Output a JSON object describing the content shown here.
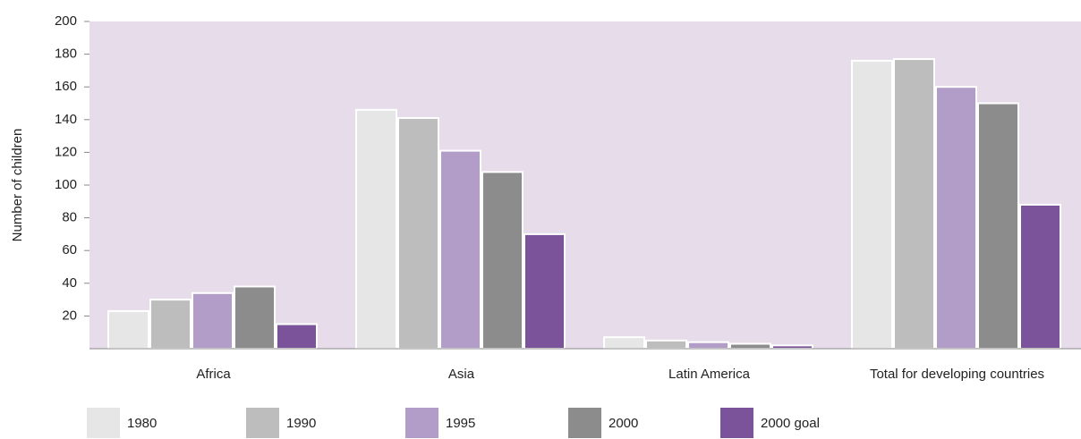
{
  "chart_data": {
    "type": "bar",
    "y_label": "Number of children",
    "categories": [
      "Africa",
      "Asia",
      "Latin America",
      "Total for developing countries"
    ],
    "series": [
      {
        "name": "1980",
        "color": "#e6e6e6",
        "values": [
          23,
          146,
          7,
          176
        ]
      },
      {
        "name": "1990",
        "color": "#bdbdbd",
        "values": [
          30,
          141,
          5,
          177
        ]
      },
      {
        "name": "1995",
        "color": "#b29cc8",
        "values": [
          34,
          121,
          4,
          160
        ]
      },
      {
        "name": "2000",
        "color": "#8c8c8c",
        "values": [
          38,
          108,
          3,
          150
        ]
      },
      {
        "name": "2000 goal",
        "color": "#7b539a",
        "values": [
          15,
          70,
          2,
          88
        ]
      }
    ],
    "ylim": [
      0,
      200
    ],
    "yticks": [
      20,
      40,
      60,
      80,
      100,
      120,
      140,
      160,
      180,
      200
    ],
    "plot_background": "#e6dcea"
  }
}
